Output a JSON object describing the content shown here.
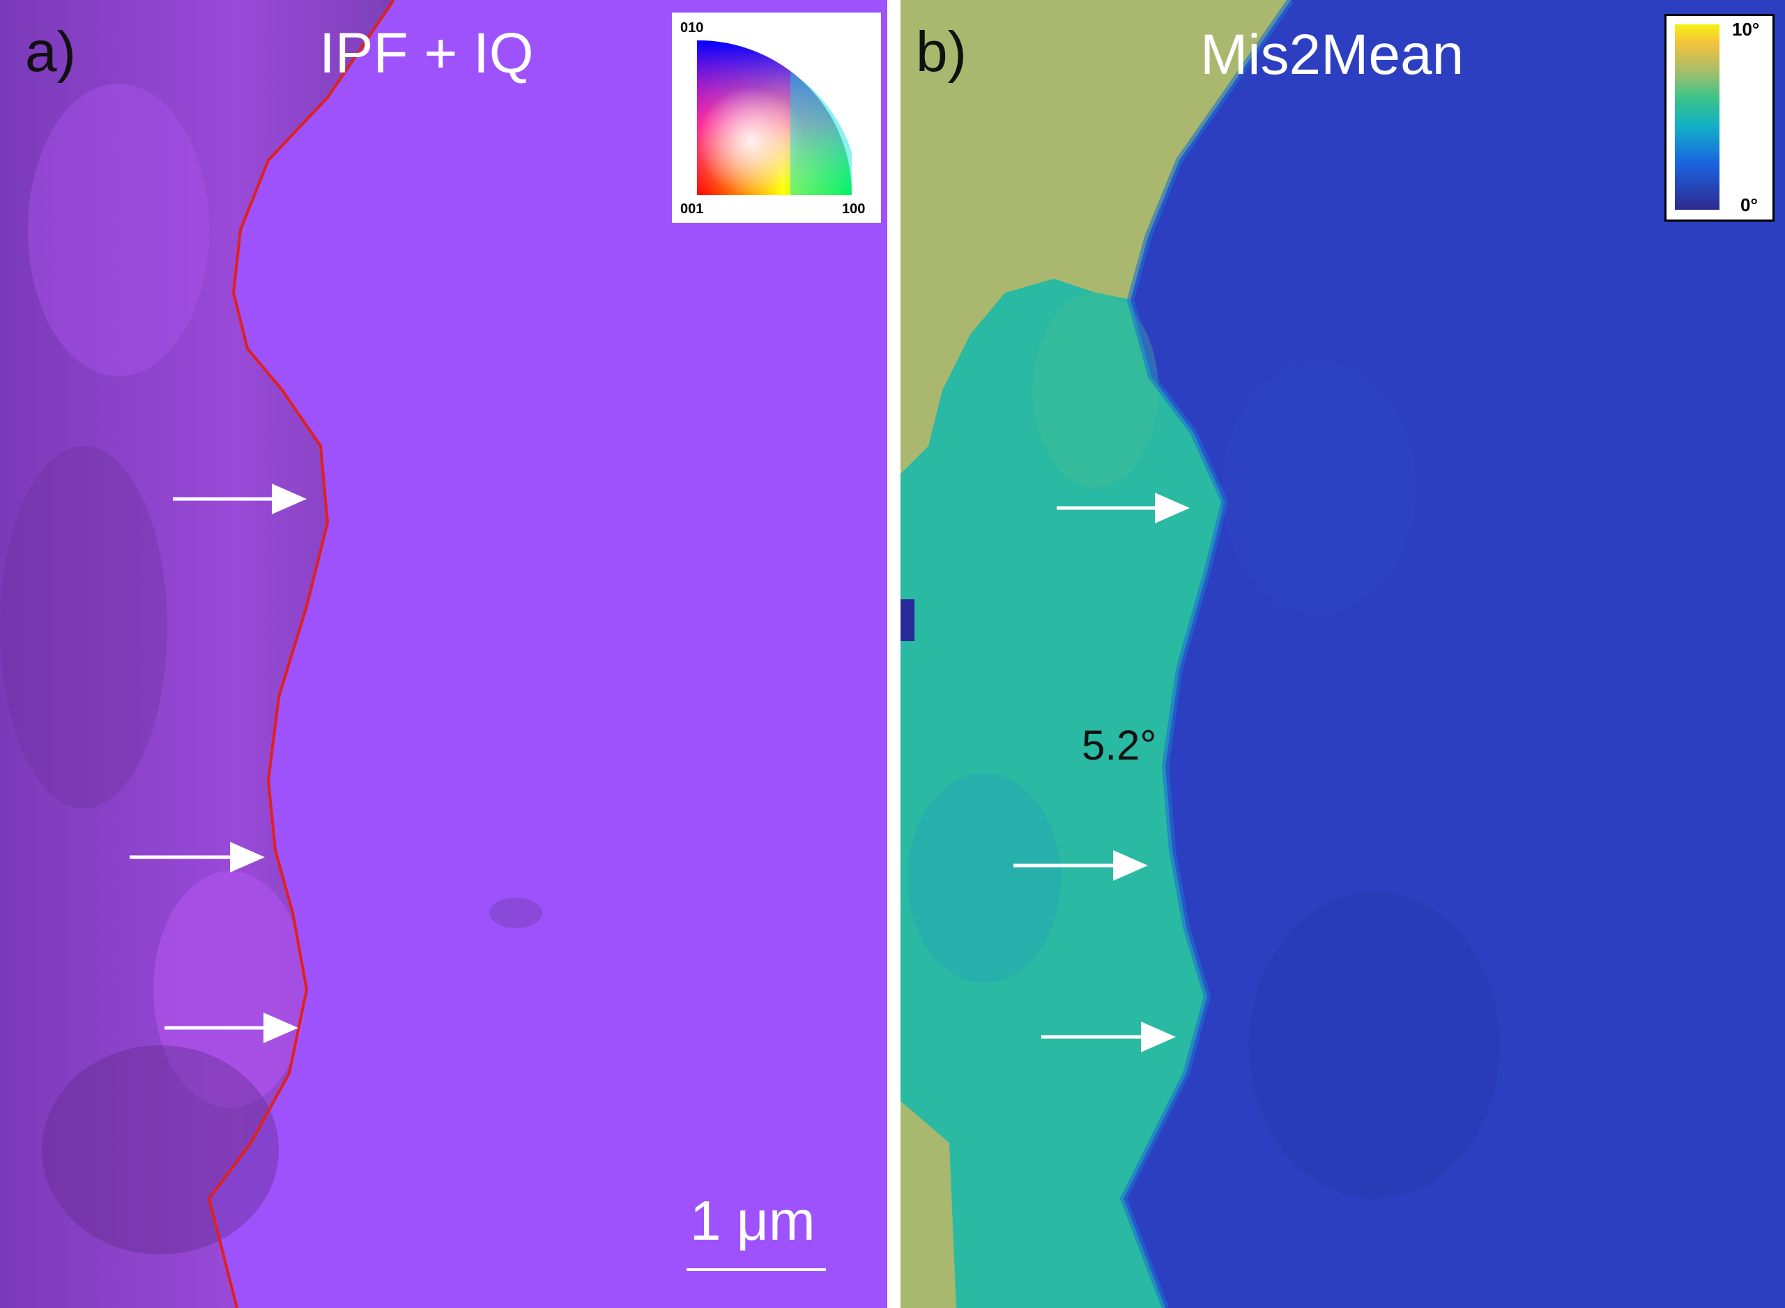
{
  "panel_a": {
    "label": "a)",
    "title": "IPF + IQ",
    "ipf_key": {
      "top": "010",
      "bottom_left": "001",
      "bottom_right": "100"
    },
    "scale_bar": "1 μm",
    "arrow_count": 3,
    "colors": {
      "grain_right": "#9e52fb",
      "grain_left": "#8e44d6",
      "boundary": "#e0201a"
    }
  },
  "panel_b": {
    "label": "b)",
    "title": "Mis2Mean",
    "colorbar": {
      "max": "10°",
      "min": "0°"
    },
    "annotation": "5.2°",
    "arrow_count": 3,
    "colors": {
      "right_grain": "#2c3fc0",
      "left_grain": "#2ab9a2",
      "upper_region": "#a9b86e"
    }
  }
}
